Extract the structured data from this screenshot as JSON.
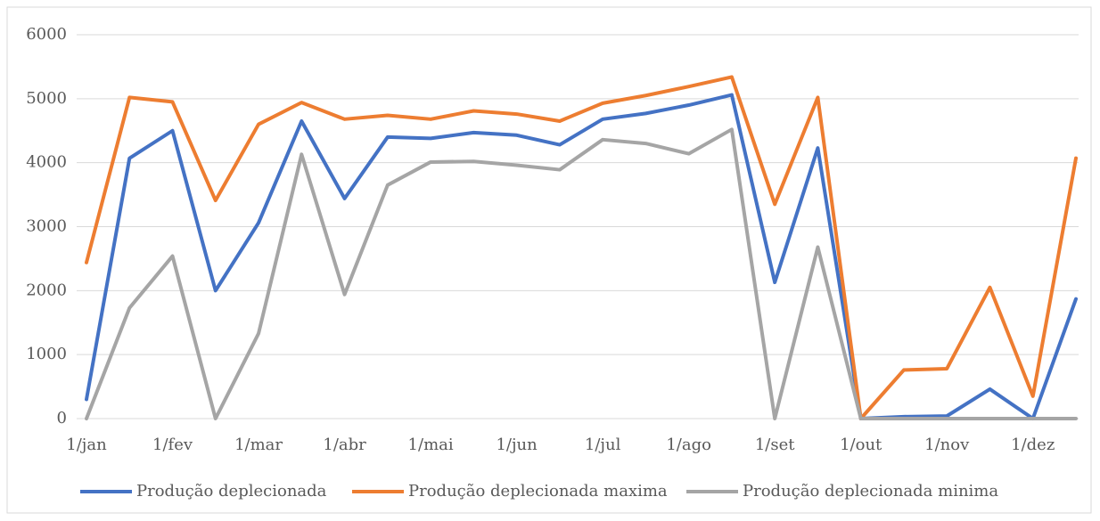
{
  "chart_data": {
    "type": "line",
    "categories": [
      "1/jan",
      null,
      "1/fev",
      null,
      "1/mar",
      null,
      "1/abr",
      null,
      "1/mai",
      null,
      "1/jun",
      null,
      "1/jul",
      null,
      "1/ago",
      null,
      "1/set",
      null,
      "1/out",
      null,
      "1/nov",
      null,
      "1/dez",
      null
    ],
    "series": [
      {
        "name": "Produção deplecionada",
        "color": "#4472c4",
        "values": [
          300,
          4070,
          4500,
          2000,
          3060,
          4650,
          3440,
          4400,
          4380,
          4470,
          4430,
          4280,
          4680,
          4770,
          4900,
          5060,
          2130,
          4230,
          0,
          30,
          40,
          460,
          0,
          1870
        ]
      },
      {
        "name": "Produção deplecionada maxima",
        "color": "#ed7d31",
        "values": [
          2440,
          5020,
          4950,
          3410,
          4600,
          4940,
          4680,
          4740,
          4680,
          4810,
          4760,
          4650,
          4930,
          5050,
          5190,
          5340,
          3350,
          5020,
          0,
          760,
          780,
          2050,
          350,
          4070
        ]
      },
      {
        "name": "Produção deplecionada minima",
        "color": "#a5a5a5",
        "values": [
          0,
          1730,
          2540,
          0,
          1330,
          4130,
          1940,
          3650,
          4010,
          4020,
          3960,
          3890,
          4360,
          4300,
          4140,
          4520,
          0,
          2680,
          0,
          0,
          0,
          0,
          0,
          0
        ]
      }
    ],
    "ylim": [
      0,
      6000
    ],
    "yticks": [
      0,
      1000,
      2000,
      3000,
      4000,
      5000,
      6000
    ],
    "grid": true,
    "legend": "bottom"
  }
}
